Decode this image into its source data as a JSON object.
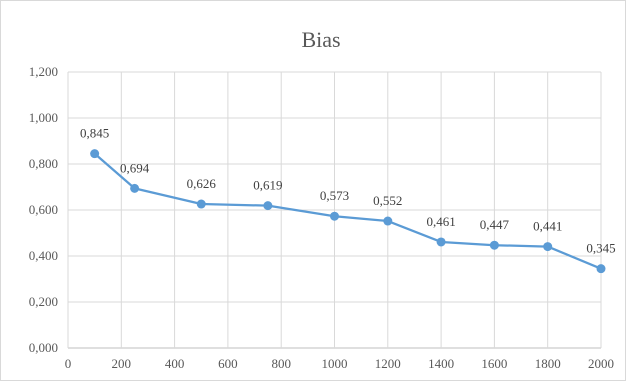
{
  "chart_data": {
    "type": "line",
    "title": "Bias",
    "xlabel": "",
    "ylabel": "",
    "x": [
      100,
      250,
      500,
      750,
      1000,
      1200,
      1400,
      1600,
      1800,
      2000
    ],
    "series": [
      {
        "values": [
          0.845,
          0.694,
          0.626,
          0.619,
          0.573,
          0.552,
          0.461,
          0.447,
          0.441,
          0.345
        ],
        "labels": [
          "0,845",
          "0,694",
          "0,626",
          "0,619",
          "0,573",
          "0,552",
          "0,461",
          "0,447",
          "0,441",
          "0,345"
        ]
      }
    ],
    "xlim": [
      0,
      2000
    ],
    "ylim": [
      0,
      1.2
    ],
    "x_ticks": [
      "0",
      "200",
      "400",
      "600",
      "800",
      "1000",
      "1200",
      "1400",
      "1600",
      "1800",
      "2000"
    ],
    "y_ticks": [
      "0,000",
      "0,200",
      "0,400",
      "0,600",
      "0,800",
      "1,000",
      "1,200"
    ],
    "grid": "vertical and horizontal",
    "legend": "none",
    "colors": {
      "line": "#5b9bd5",
      "grid": "#d9d9d9",
      "axis": "#bfbfbf"
    }
  }
}
